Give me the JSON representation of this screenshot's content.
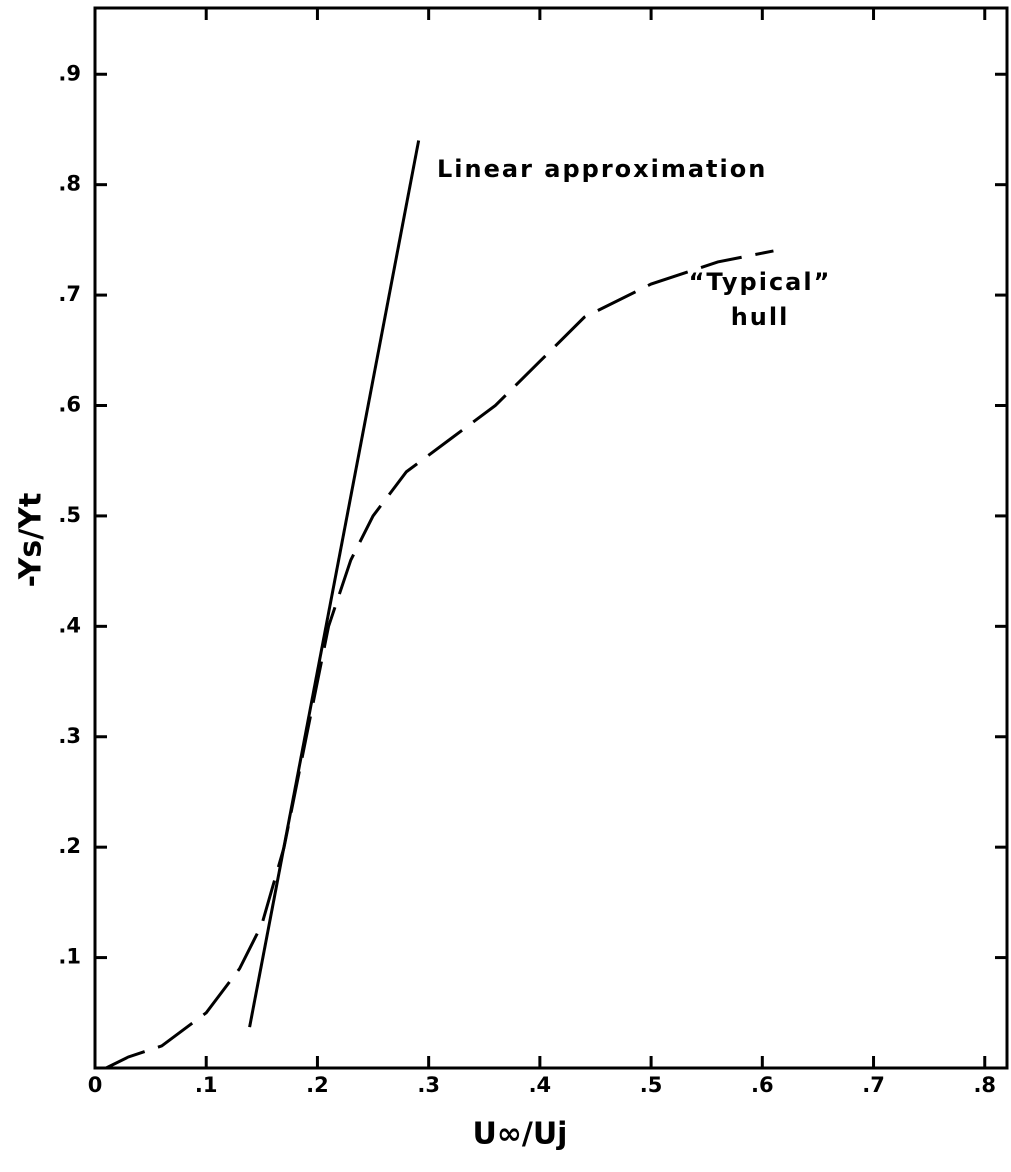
{
  "chart_data": {
    "type": "line",
    "xlabel": "U∞/Uj",
    "ylabel": "-Ys/Yt",
    "xlim": [
      0,
      0.82
    ],
    "ylim": [
      0,
      0.96
    ],
    "xticks": [
      0,
      {
        "value": 0.1,
        "label": ".1"
      },
      {
        "value": 0.2,
        "label": ".2"
      },
      {
        "value": 0.3,
        "label": ".3"
      },
      {
        "value": 0.4,
        "label": ".4"
      },
      {
        "value": 0.5,
        "label": ".5"
      },
      {
        "value": 0.6,
        "label": ".6"
      },
      {
        "value": 0.7,
        "label": ".7"
      },
      {
        "value": 0.8,
        "label": ".8"
      }
    ],
    "yticks": [
      {
        "value": 0.1,
        "label": ".1"
      },
      {
        "value": 0.2,
        "label": ".2"
      },
      {
        "value": 0.3,
        "label": ".3"
      },
      {
        "value": 0.4,
        "label": ".4"
      },
      {
        "value": 0.5,
        "label": ".5"
      },
      {
        "value": 0.6,
        "label": ".6"
      },
      {
        "value": 0.7,
        "label": ".7"
      },
      {
        "value": 0.8,
        "label": ".8"
      },
      {
        "value": 0.9,
        "label": ".9"
      }
    ],
    "grid": false,
    "series": [
      {
        "color": "#000000",
        "dash": false,
        "x": [
          0.139,
          0.291
        ],
        "values": [
          0.037,
          0.84
        ]
      },
      {
        "color": "#000000",
        "dash": true,
        "x": [
          0.01,
          0.03,
          0.06,
          0.1,
          0.13,
          0.15,
          0.17,
          0.19,
          0.21,
          0.23,
          0.25,
          0.28,
          0.32,
          0.36,
          0.4,
          0.44,
          0.5,
          0.56,
          0.61
        ],
        "values": [
          0.0,
          0.01,
          0.02,
          0.05,
          0.09,
          0.13,
          0.2,
          0.3,
          0.4,
          0.46,
          0.5,
          0.54,
          0.57,
          0.6,
          0.64,
          0.68,
          0.71,
          0.73,
          0.74
        ]
      }
    ],
    "annotations": [
      {
        "text": "Linear approximation"
      },
      {
        "text": "“Typical”"
      },
      {
        "text": "hull"
      }
    ]
  }
}
